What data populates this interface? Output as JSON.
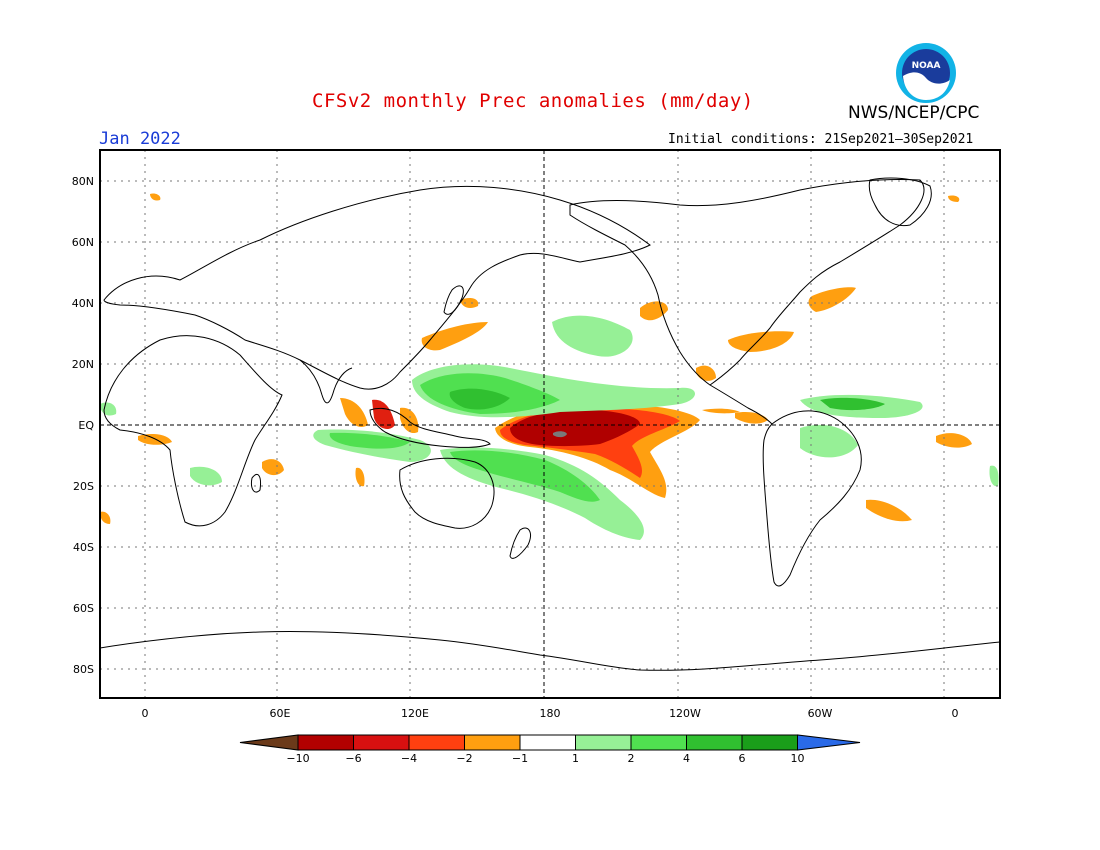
{
  "title": "CFSv2 monthly Prec anomalies (mm/day)",
  "org": "NWS/NCEP/CPC",
  "logo_text": "NOAA",
  "month": "Jan 2022",
  "initial_conditions": "Initial conditions: 21Sep2021–30Sep2021",
  "lat_labels": [
    "80N",
    "60N",
    "40N",
    "20N",
    "EQ",
    "20S",
    "40S",
    "60S",
    "80S"
  ],
  "lat_values": [
    80,
    60,
    40,
    20,
    0,
    -20,
    -40,
    -60,
    -80
  ],
  "lon_labels": [
    "0",
    "60E",
    "120E",
    "180",
    "120W",
    "60W",
    "0"
  ],
  "lon_values": [
    0,
    60,
    120,
    180,
    240,
    300,
    360
  ],
  "colorbar": {
    "ticks": [
      "−10",
      "−6",
      "−4",
      "−2",
      "−1",
      "1",
      "2",
      "4",
      "6",
      "10"
    ],
    "colors": [
      "#6b3a1a",
      "#b20000",
      "#d81010",
      "#ff4010",
      "#ff9f10",
      "#ffffff",
      "#96f096",
      "#50e050",
      "#30c030",
      "#1a9e1a",
      "#2a6ae8"
    ]
  },
  "colors": {
    "title": "#e00000",
    "month": "#1a3cd6",
    "dry_strong": "#b00000",
    "dry_mid": "#e02010",
    "dry_light": "#ff9f10",
    "wet_light": "#96f096",
    "wet_mid": "#50e050",
    "wet_strong": "#1a9e1a"
  }
}
